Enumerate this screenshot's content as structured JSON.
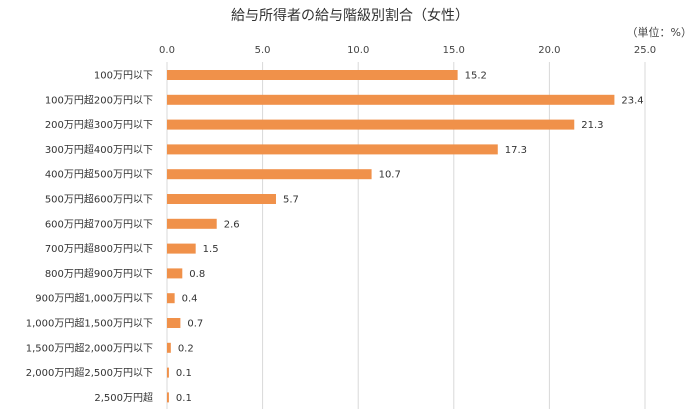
{
  "chart_data": {
    "type": "bar",
    "orientation": "horizontal",
    "title": "給与所得者の給与階級別割合（女性）",
    "unit_label": "（単位：%）",
    "xlim": [
      0,
      25
    ],
    "x_ticks": [
      "0.0",
      "5.0",
      "10.0",
      "15.0",
      "20.0",
      "25.0"
    ],
    "grid": true,
    "axis_position": "top",
    "bar_color": "#F0914A",
    "grid_color": "#D9D9D9",
    "categories": [
      "100万円以下",
      "100万円超200万円以下",
      "200万円超300万円以下",
      "300万円超400万円以下",
      "400万円超500万円以下",
      "500万円超600万円以下",
      "600万円超700万円以下",
      "700万円超800万円以下",
      "800万円超900万円以下",
      "900万円超1,000万円以下",
      "1,000万円超1,500万円以下",
      "1,500万円超2,000万円以下",
      "2,000万円超2,500万円以下",
      "2,500万円超"
    ],
    "values": [
      15.2,
      23.4,
      21.3,
      17.3,
      10.7,
      5.7,
      2.6,
      1.5,
      0.8,
      0.4,
      0.7,
      0.2,
      0.1,
      0.1
    ],
    "value_labels": [
      "15.2",
      "23.4",
      "21.3",
      "17.3",
      "10.7",
      "5.7",
      "2.6",
      "1.5",
      "0.8",
      "0.4",
      "0.7",
      "0.2",
      "0.1",
      "0.1"
    ]
  }
}
